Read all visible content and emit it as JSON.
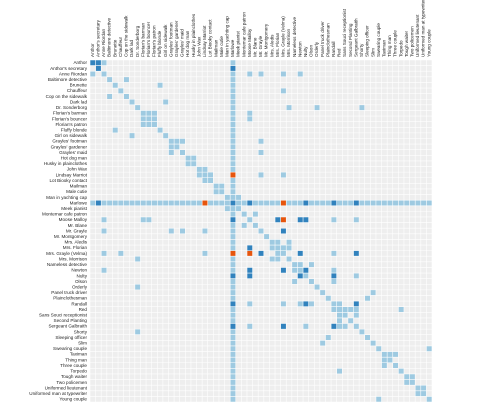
{
  "chart_data": {
    "type": "heatmap",
    "labels": [
      "Anthor",
      "Anthor's secretary",
      "Anne Riordan",
      "Baltimore detective",
      "Brunette",
      "Chauffeur",
      "Cop on the sidewalk",
      "Dark lad",
      "Dr. Sonderborg",
      "Florian's barman",
      "Florian's bouncer",
      "Florian's patron",
      "Fluffy blonde",
      "Girl on sidewalk",
      "Grayles' footman",
      "Grayles' gardener",
      "Grayles' maid",
      "Hot dog man",
      "Husky in plainclothes",
      "John Wax",
      "Lindsay Marriot",
      "Lot Biooky contact",
      "Mailman",
      "Male cutie",
      "Man in yachting cap",
      "Marlowe",
      "Meek pianist",
      "Montemar cafe patron",
      "Moose Malloy",
      "Mr. Blane",
      "Mr. Grayle",
      "Mr. Montgomery",
      "Mrs. Aledis",
      "Mrs. Florian",
      "Mrs. Grayle (Velma)",
      "Mrs. Morrison",
      "Nameless detective",
      "Newton",
      "Nulty",
      "Olson",
      "Orderly",
      "Panel truck driver",
      "Plainclothesman",
      "Randall",
      "Red",
      "Sans Souci receptionist",
      "Second Planting",
      "Sergeant Galbraith",
      "Shorty",
      "Sleeping officer",
      "Slim",
      "Swearing couple",
      "Taximan",
      "Thing man",
      "Three couple",
      "Torpedo",
      "Tough waiter",
      "Two policemen",
      "Uniformed lieutenant",
      "Uniformed man at typewriter",
      "Young couple"
    ],
    "cells": [
      [
        0,
        0,
        2
      ],
      [
        1,
        1,
        2
      ],
      [
        0,
        1,
        2
      ],
      [
        2,
        2,
        1
      ],
      [
        3,
        3,
        1
      ],
      [
        4,
        4,
        1
      ],
      [
        5,
        5,
        1
      ],
      [
        6,
        6,
        1
      ],
      [
        7,
        7,
        1
      ],
      [
        8,
        8,
        1
      ],
      [
        9,
        9,
        1
      ],
      [
        10,
        10,
        1
      ],
      [
        11,
        11,
        1
      ],
      [
        12,
        12,
        1
      ],
      [
        13,
        13,
        1
      ],
      [
        14,
        14,
        1
      ],
      [
        15,
        15,
        1
      ],
      [
        16,
        16,
        1
      ],
      [
        17,
        17,
        1
      ],
      [
        18,
        18,
        1
      ],
      [
        19,
        19,
        1
      ],
      [
        20,
        20,
        1
      ],
      [
        21,
        21,
        1
      ],
      [
        22,
        22,
        1
      ],
      [
        23,
        23,
        1
      ],
      [
        24,
        24,
        1
      ],
      [
        25,
        25,
        2
      ],
      [
        26,
        26,
        1
      ],
      [
        27,
        27,
        1
      ],
      [
        28,
        28,
        1
      ],
      [
        29,
        29,
        1
      ],
      [
        30,
        30,
        1
      ],
      [
        31,
        31,
        1
      ],
      [
        32,
        32,
        1
      ],
      [
        33,
        33,
        1
      ],
      [
        34,
        34,
        1
      ],
      [
        35,
        35,
        1
      ],
      [
        36,
        36,
        1
      ],
      [
        37,
        37,
        1
      ],
      [
        38,
        38,
        1
      ],
      [
        39,
        39,
        1
      ],
      [
        40,
        40,
        1
      ],
      [
        41,
        41,
        1
      ],
      [
        42,
        42,
        1
      ],
      [
        43,
        43,
        1
      ],
      [
        44,
        44,
        1
      ],
      [
        45,
        45,
        1
      ],
      [
        46,
        46,
        1
      ],
      [
        47,
        47,
        1
      ],
      [
        48,
        48,
        1
      ],
      [
        49,
        49,
        1
      ],
      [
        50,
        50,
        1
      ],
      [
        51,
        51,
        1
      ],
      [
        52,
        52,
        1
      ],
      [
        53,
        53,
        1
      ],
      [
        54,
        54,
        1
      ],
      [
        55,
        55,
        1
      ],
      [
        56,
        56,
        1
      ],
      [
        57,
        57,
        1
      ],
      [
        58,
        58,
        1
      ],
      [
        59,
        59,
        1
      ],
      [
        60,
        60,
        1
      ],
      [
        25,
        0,
        1
      ],
      [
        25,
        1,
        2
      ],
      [
        25,
        2,
        1
      ],
      [
        25,
        3,
        1
      ],
      [
        25,
        4,
        1
      ],
      [
        25,
        5,
        1
      ],
      [
        25,
        6,
        1
      ],
      [
        25,
        7,
        1
      ],
      [
        25,
        8,
        1
      ],
      [
        25,
        9,
        1
      ],
      [
        25,
        10,
        1
      ],
      [
        25,
        11,
        1
      ],
      [
        25,
        12,
        1
      ],
      [
        25,
        13,
        1
      ],
      [
        25,
        14,
        1
      ],
      [
        25,
        15,
        1
      ],
      [
        25,
        16,
        1
      ],
      [
        25,
        17,
        1
      ],
      [
        25,
        18,
        1
      ],
      [
        25,
        19,
        1
      ],
      [
        25,
        20,
        3
      ],
      [
        25,
        21,
        1
      ],
      [
        25,
        22,
        1
      ],
      [
        25,
        23,
        1
      ],
      [
        25,
        24,
        1
      ],
      [
        25,
        26,
        1
      ],
      [
        25,
        27,
        1
      ],
      [
        25,
        28,
        2
      ],
      [
        25,
        29,
        1
      ],
      [
        25,
        30,
        1
      ],
      [
        25,
        31,
        1
      ],
      [
        25,
        32,
        1
      ],
      [
        25,
        33,
        1
      ],
      [
        25,
        34,
        3
      ],
      [
        25,
        35,
        1
      ],
      [
        25,
        36,
        1
      ],
      [
        25,
        37,
        1
      ],
      [
        25,
        38,
        2
      ],
      [
        25,
        39,
        1
      ],
      [
        25,
        40,
        1
      ],
      [
        25,
        41,
        1
      ],
      [
        25,
        42,
        1
      ],
      [
        25,
        43,
        2
      ],
      [
        25,
        44,
        1
      ],
      [
        25,
        45,
        1
      ],
      [
        25,
        46,
        1
      ],
      [
        25,
        47,
        2
      ],
      [
        25,
        48,
        1
      ],
      [
        25,
        49,
        1
      ],
      [
        25,
        50,
        1
      ],
      [
        25,
        51,
        1
      ],
      [
        25,
        52,
        1
      ],
      [
        25,
        53,
        1
      ],
      [
        25,
        54,
        1
      ],
      [
        25,
        55,
        1
      ],
      [
        25,
        56,
        1
      ],
      [
        25,
        57,
        1
      ],
      [
        25,
        58,
        1
      ],
      [
        25,
        59,
        1
      ],
      [
        25,
        60,
        1
      ],
      [
        0,
        25,
        1
      ],
      [
        1,
        25,
        2
      ],
      [
        2,
        25,
        1
      ],
      [
        3,
        25,
        1
      ],
      [
        4,
        25,
        1
      ],
      [
        5,
        25,
        1
      ],
      [
        6,
        25,
        1
      ],
      [
        7,
        25,
        1
      ],
      [
        8,
        25,
        1
      ],
      [
        9,
        25,
        1
      ],
      [
        10,
        25,
        1
      ],
      [
        11,
        25,
        1
      ],
      [
        12,
        25,
        1
      ],
      [
        13,
        25,
        1
      ],
      [
        14,
        25,
        1
      ],
      [
        15,
        25,
        1
      ],
      [
        16,
        25,
        1
      ],
      [
        17,
        25,
        1
      ],
      [
        18,
        25,
        1
      ],
      [
        19,
        25,
        1
      ],
      [
        20,
        25,
        3
      ],
      [
        21,
        25,
        1
      ],
      [
        22,
        25,
        1
      ],
      [
        23,
        25,
        1
      ],
      [
        24,
        25,
        1
      ],
      [
        26,
        25,
        1
      ],
      [
        27,
        25,
        1
      ],
      [
        28,
        25,
        2
      ],
      [
        29,
        25,
        1
      ],
      [
        30,
        25,
        1
      ],
      [
        31,
        25,
        1
      ],
      [
        32,
        25,
        1
      ],
      [
        33,
        25,
        1
      ],
      [
        34,
        25,
        3
      ],
      [
        35,
        25,
        1
      ],
      [
        36,
        25,
        1
      ],
      [
        37,
        25,
        1
      ],
      [
        38,
        25,
        2
      ],
      [
        39,
        25,
        1
      ],
      [
        40,
        25,
        1
      ],
      [
        41,
        25,
        1
      ],
      [
        42,
        25,
        1
      ],
      [
        43,
        25,
        2
      ],
      [
        44,
        25,
        1
      ],
      [
        45,
        25,
        1
      ],
      [
        46,
        25,
        1
      ],
      [
        47,
        25,
        2
      ],
      [
        48,
        25,
        1
      ],
      [
        49,
        25,
        1
      ],
      [
        50,
        25,
        1
      ],
      [
        51,
        25,
        1
      ],
      [
        52,
        25,
        1
      ],
      [
        53,
        25,
        1
      ],
      [
        54,
        25,
        1
      ],
      [
        55,
        25,
        1
      ],
      [
        56,
        25,
        1
      ],
      [
        57,
        25,
        1
      ],
      [
        58,
        25,
        1
      ],
      [
        59,
        25,
        1
      ],
      [
        60,
        25,
        1
      ],
      [
        2,
        0,
        1
      ],
      [
        0,
        2,
        1
      ],
      [
        2,
        34,
        1
      ],
      [
        34,
        2,
        1
      ],
      [
        2,
        30,
        1
      ],
      [
        30,
        2,
        1
      ],
      [
        2,
        37,
        1
      ],
      [
        37,
        2,
        1
      ],
      [
        2,
        28,
        1
      ],
      [
        28,
        2,
        1
      ],
      [
        9,
        10,
        1
      ],
      [
        10,
        9,
        1
      ],
      [
        9,
        11,
        1
      ],
      [
        11,
        9,
        1
      ],
      [
        10,
        11,
        1
      ],
      [
        11,
        10,
        1
      ],
      [
        9,
        28,
        1
      ],
      [
        28,
        9,
        1
      ],
      [
        10,
        28,
        1
      ],
      [
        28,
        10,
        1
      ],
      [
        14,
        15,
        1
      ],
      [
        15,
        14,
        1
      ],
      [
        14,
        16,
        1
      ],
      [
        16,
        14,
        1
      ],
      [
        30,
        14,
        1
      ],
      [
        14,
        30,
        1
      ],
      [
        30,
        16,
        1
      ],
      [
        16,
        30,
        1
      ],
      [
        20,
        21,
        1
      ],
      [
        21,
        20,
        1
      ],
      [
        20,
        34,
        1
      ],
      [
        34,
        20,
        1
      ],
      [
        20,
        30,
        1
      ],
      [
        30,
        20,
        1
      ],
      [
        20,
        19,
        1
      ],
      [
        19,
        20,
        1
      ],
      [
        28,
        33,
        2
      ],
      [
        33,
        28,
        2
      ],
      [
        28,
        34,
        3
      ],
      [
        34,
        28,
        3
      ],
      [
        28,
        37,
        2
      ],
      [
        37,
        28,
        2
      ],
      [
        28,
        38,
        2
      ],
      [
        38,
        28,
        2
      ],
      [
        28,
        47,
        1
      ],
      [
        47,
        28,
        1
      ],
      [
        28,
        43,
        1
      ],
      [
        43,
        28,
        1
      ],
      [
        30,
        34,
        2
      ],
      [
        34,
        30,
        2
      ],
      [
        33,
        34,
        1
      ],
      [
        34,
        33,
        1
      ],
      [
        34,
        37,
        2
      ],
      [
        37,
        34,
        2
      ],
      [
        34,
        43,
        1
      ],
      [
        43,
        34,
        1
      ],
      [
        34,
        47,
        2
      ],
      [
        47,
        34,
        2
      ],
      [
        33,
        35,
        1
      ],
      [
        35,
        33,
        1
      ],
      [
        32,
        35,
        1
      ],
      [
        35,
        32,
        1
      ],
      [
        32,
        33,
        1
      ],
      [
        33,
        32,
        1
      ],
      [
        37,
        38,
        2
      ],
      [
        38,
        37,
        2
      ],
      [
        37,
        43,
        1
      ],
      [
        43,
        37,
        1
      ],
      [
        38,
        43,
        2
      ],
      [
        43,
        38,
        2
      ],
      [
        38,
        47,
        1
      ],
      [
        47,
        38,
        1
      ],
      [
        43,
        47,
        2
      ],
      [
        47,
        43,
        2
      ],
      [
        43,
        44,
        1
      ],
      [
        44,
        43,
        1
      ],
      [
        47,
        44,
        1
      ],
      [
        44,
        47,
        1
      ],
      [
        47,
        45,
        1
      ],
      [
        45,
        47,
        1
      ],
      [
        44,
        45,
        1
      ],
      [
        45,
        44,
        1
      ],
      [
        44,
        55,
        1
      ],
      [
        55,
        44,
        1
      ],
      [
        44,
        46,
        1
      ],
      [
        46,
        44,
        1
      ],
      [
        8,
        40,
        1
      ],
      [
        40,
        8,
        1
      ],
      [
        8,
        48,
        1
      ],
      [
        48,
        8,
        1
      ],
      [
        8,
        35,
        1
      ],
      [
        35,
        8,
        1
      ],
      [
        36,
        37,
        1
      ],
      [
        37,
        36,
        1
      ],
      [
        36,
        39,
        1
      ],
      [
        39,
        36,
        1
      ],
      [
        39,
        43,
        1
      ],
      [
        43,
        39,
        1
      ],
      [
        52,
        53,
        1
      ],
      [
        53,
        52,
        1
      ],
      [
        52,
        54,
        1
      ],
      [
        54,
        52,
        1
      ],
      [
        56,
        57,
        1
      ],
      [
        57,
        56,
        1
      ],
      [
        58,
        59,
        1
      ],
      [
        59,
        58,
        1
      ],
      [
        60,
        51,
        1
      ],
      [
        51,
        60,
        1
      ],
      [
        50,
        41,
        1
      ],
      [
        41,
        50,
        1
      ],
      [
        49,
        42,
        1
      ],
      [
        42,
        49,
        1
      ],
      [
        17,
        18,
        1
      ],
      [
        18,
        17,
        1
      ],
      [
        22,
        23,
        1
      ],
      [
        23,
        22,
        1
      ],
      [
        24,
        26,
        1
      ],
      [
        26,
        24,
        1
      ],
      [
        27,
        29,
        1
      ],
      [
        29,
        27,
        1
      ],
      [
        3,
        6,
        1
      ],
      [
        6,
        3,
        1
      ],
      [
        5,
        34,
        1
      ],
      [
        34,
        5,
        1
      ],
      [
        4,
        12,
        1
      ],
      [
        12,
        4,
        1
      ],
      [
        7,
        13,
        1
      ],
      [
        13,
        7,
        1
      ]
    ],
    "legend": [],
    "grid": true,
    "colors": {
      "empty": "#eeeeee",
      "level1": "#9ecae1",
      "level2": "#3182bd",
      "level3": "#e6550d"
    }
  }
}
